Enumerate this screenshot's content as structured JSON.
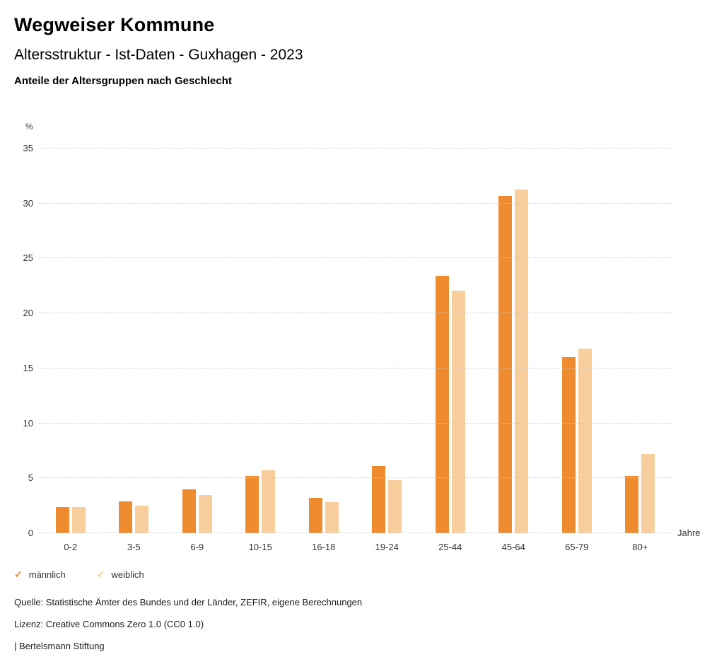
{
  "header": {
    "title": "Wegweiser Kommune",
    "subtitle": "Altersstruktur - Ist-Daten - Guxhagen - 2023",
    "chart_title": "Anteile der Altersgruppen nach Geschlecht"
  },
  "chart_data": {
    "type": "bar",
    "title": "Anteile der Altersgruppen nach Geschlecht",
    "categories": [
      "0-2",
      "3-5",
      "6-9",
      "10-15",
      "16-18",
      "19-24",
      "25-44",
      "45-64",
      "65-79",
      "80+"
    ],
    "series": [
      {
        "name": "männlich",
        "color": "#EF8B2F",
        "values": [
          2.4,
          2.9,
          4.0,
          5.2,
          3.2,
          6.1,
          23.4,
          30.7,
          16.0,
          5.2
        ]
      },
      {
        "name": "weiblich",
        "color": "#F8CE9C",
        "values": [
          2.4,
          2.5,
          3.5,
          5.7,
          2.8,
          4.8,
          22.1,
          31.3,
          16.8,
          7.2
        ]
      }
    ],
    "ylabel": "%",
    "xlabel": "Jahre",
    "ylim": [
      0,
      35
    ],
    "yticks": [
      0,
      5,
      10,
      15,
      20,
      25,
      30,
      35
    ],
    "grid": true,
    "gridline_color": "#c9c9c9",
    "legend_position": "bottom"
  },
  "legend": {
    "check_glyph": "✓",
    "items": [
      {
        "label": "männlich",
        "color": "#EF8B2F"
      },
      {
        "label": "weiblich",
        "color": "#F8CE9C"
      }
    ]
  },
  "footer": {
    "source": "Quelle: Statistische Ämter des Bundes und der Länder, ZEFIR, eigene Berechnungen",
    "license": "Lizenz: Creative Commons Zero 1.0 (CC0 1.0)",
    "attribution": "| Bertelsmann Stiftung"
  }
}
